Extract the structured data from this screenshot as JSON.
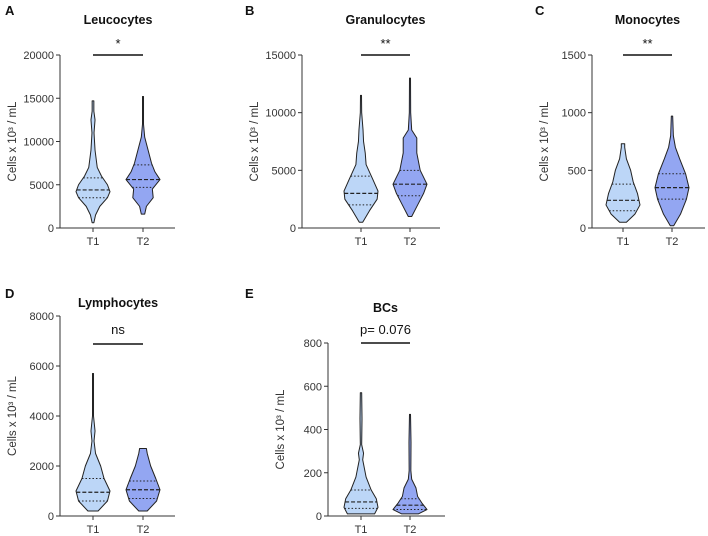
{
  "chart_data": [
    {
      "letter": "A",
      "type": "violin",
      "title": "Leucocytes",
      "ylabel": "Cells x 10³ / mL",
      "ylim": [
        0,
        20000
      ],
      "yticks": [
        0,
        5000,
        10000,
        15000,
        20000
      ],
      "categories": [
        "T1",
        "T2"
      ],
      "significance": "*",
      "series": [
        {
          "name": "T1",
          "color": "#bcd6f7",
          "min": 600,
          "max": 14700,
          "median": 4400,
          "q1": 3500,
          "q3": 5800,
          "profile": [
            [
              600,
              0.05
            ],
            [
              1500,
              0.15
            ],
            [
              2500,
              0.4
            ],
            [
              3500,
              0.85
            ],
            [
              4200,
              1
            ],
            [
              5000,
              0.85
            ],
            [
              6000,
              0.5
            ],
            [
              7000,
              0.25
            ],
            [
              9000,
              0.12
            ],
            [
              11000,
              0.06
            ],
            [
              12500,
              0.12
            ],
            [
              13500,
              0.05
            ],
            [
              14700,
              0.05
            ]
          ]
        },
        {
          "name": "T2",
          "color": "#93a6f2",
          "min": 1600,
          "max": 15200,
          "median": 5600,
          "q1": 4700,
          "q3": 7300,
          "profile": [
            [
              1600,
              0.1
            ],
            [
              2500,
              0.2
            ],
            [
              3500,
              0.6
            ],
            [
              4500,
              0.55
            ],
            [
              5600,
              1
            ],
            [
              6500,
              0.7
            ],
            [
              7500,
              0.5
            ],
            [
              9000,
              0.3
            ],
            [
              10500,
              0.1
            ],
            [
              12000,
              0.03
            ],
            [
              15200,
              0.03
            ]
          ]
        }
      ]
    },
    {
      "letter": "B",
      "type": "violin",
      "title": "Granulocytes",
      "ylabel": "Cells x 10³ / mL",
      "ylim": [
        0,
        15000
      ],
      "yticks": [
        0,
        5000,
        10000,
        15000
      ],
      "categories": [
        "T1",
        "T2"
      ],
      "significance": "**",
      "series": [
        {
          "name": "T1",
          "color": "#bcd6f7",
          "min": 500,
          "max": 11500,
          "median": 3000,
          "q1": 2000,
          "q3": 4500,
          "profile": [
            [
              500,
              0.1
            ],
            [
              1500,
              0.5
            ],
            [
              2500,
              0.95
            ],
            [
              3200,
              1
            ],
            [
              4200,
              0.7
            ],
            [
              5500,
              0.3
            ],
            [
              6500,
              0.25
            ],
            [
              7500,
              0.15
            ],
            [
              8500,
              0.12
            ],
            [
              10000,
              0.04
            ],
            [
              11500,
              0.03
            ]
          ]
        },
        {
          "name": "T2",
          "color": "#93a6f2",
          "min": 1000,
          "max": 13000,
          "median": 3800,
          "q1": 2800,
          "q3": 5000,
          "profile": [
            [
              1000,
              0.1
            ],
            [
              2000,
              0.45
            ],
            [
              3000,
              0.8
            ],
            [
              3800,
              1
            ],
            [
              5000,
              0.6
            ],
            [
              6500,
              0.4
            ],
            [
              7800,
              0.4
            ],
            [
              8500,
              0.1
            ],
            [
              10000,
              0.04
            ],
            [
              13000,
              0.03
            ]
          ]
        }
      ]
    },
    {
      "letter": "C",
      "type": "violin",
      "title": "Monocytes",
      "ylabel": "Cells x 10³ / mL",
      "ylim": [
        0,
        1500
      ],
      "yticks": [
        0,
        500,
        1000,
        1500
      ],
      "categories": [
        "T1",
        "T2"
      ],
      "significance": "**",
      "series": [
        {
          "name": "T1",
          "color": "#bcd6f7",
          "min": 50,
          "max": 730,
          "median": 240,
          "q1": 150,
          "q3": 380,
          "profile": [
            [
              50,
              0.2
            ],
            [
              120,
              0.7
            ],
            [
              200,
              1
            ],
            [
              300,
              0.85
            ],
            [
              400,
              0.6
            ],
            [
              500,
              0.45
            ],
            [
              600,
              0.2
            ],
            [
              700,
              0.1
            ],
            [
              730,
              0.1
            ]
          ]
        },
        {
          "name": "T2",
          "color": "#93a6f2",
          "min": 20,
          "max": 970,
          "median": 350,
          "q1": 250,
          "q3": 470,
          "profile": [
            [
              20,
              0.1
            ],
            [
              120,
              0.5
            ],
            [
              250,
              0.85
            ],
            [
              350,
              1
            ],
            [
              470,
              0.8
            ],
            [
              600,
              0.45
            ],
            [
              700,
              0.2
            ],
            [
              800,
              0.08
            ],
            [
              970,
              0.04
            ]
          ]
        }
      ]
    },
    {
      "letter": "D",
      "type": "violin",
      "title": "Lymphocytes",
      "ylabel": "Cells x 10³ / mL",
      "ylim": [
        0,
        8000
      ],
      "yticks": [
        0,
        2000,
        4000,
        6000,
        8000
      ],
      "categories": [
        "T1",
        "T2"
      ],
      "significance": "ns",
      "series": [
        {
          "name": "T1",
          "color": "#bcd6f7",
          "min": 200,
          "max": 5700,
          "median": 950,
          "q1": 600,
          "q3": 1500,
          "profile": [
            [
              200,
              0.3
            ],
            [
              600,
              0.85
            ],
            [
              1000,
              1
            ],
            [
              1500,
              0.65
            ],
            [
              2000,
              0.45
            ],
            [
              2500,
              0.15
            ],
            [
              3000,
              0.06
            ],
            [
              3400,
              0.12
            ],
            [
              4000,
              0.03
            ],
            [
              5700,
              0.03
            ]
          ]
        },
        {
          "name": "T2",
          "color": "#93a6f2",
          "min": 200,
          "max": 2700,
          "median": 1050,
          "q1": 700,
          "q3": 1400,
          "profile": [
            [
              200,
              0.25
            ],
            [
              600,
              0.8
            ],
            [
              1050,
              1
            ],
            [
              1500,
              0.75
            ],
            [
              2000,
              0.45
            ],
            [
              2500,
              0.25
            ],
            [
              2700,
              0.2
            ]
          ]
        }
      ]
    },
    {
      "letter": "E",
      "type": "violin",
      "title": "BCs",
      "ylabel": "Cells x 10³ / mL",
      "ylim": [
        0,
        800
      ],
      "yticks": [
        0,
        200,
        400,
        600,
        800
      ],
      "categories": [
        "T1",
        "T2"
      ],
      "significance": "p= 0.076",
      "series": [
        {
          "name": "T1",
          "color": "#bcd6f7",
          "min": 10,
          "max": 570,
          "median": 65,
          "q1": 35,
          "q3": 120,
          "profile": [
            [
              10,
              0.8
            ],
            [
              40,
              1
            ],
            [
              80,
              0.9
            ],
            [
              120,
              0.6
            ],
            [
              180,
              0.3
            ],
            [
              260,
              0.1
            ],
            [
              290,
              0.15
            ],
            [
              330,
              0.04
            ],
            [
              450,
              0.06
            ],
            [
              570,
              0.04
            ]
          ]
        },
        {
          "name": "T2",
          "color": "#93a6f2",
          "min": 10,
          "max": 470,
          "median": 50,
          "q1": 30,
          "q3": 80,
          "profile": [
            [
              10,
              0.5
            ],
            [
              30,
              1
            ],
            [
              60,
              0.7
            ],
            [
              90,
              0.45
            ],
            [
              130,
              0.35
            ],
            [
              170,
              0.1
            ],
            [
              210,
              0.05
            ],
            [
              340,
              0.06
            ],
            [
              470,
              0.03
            ]
          ]
        }
      ]
    }
  ]
}
